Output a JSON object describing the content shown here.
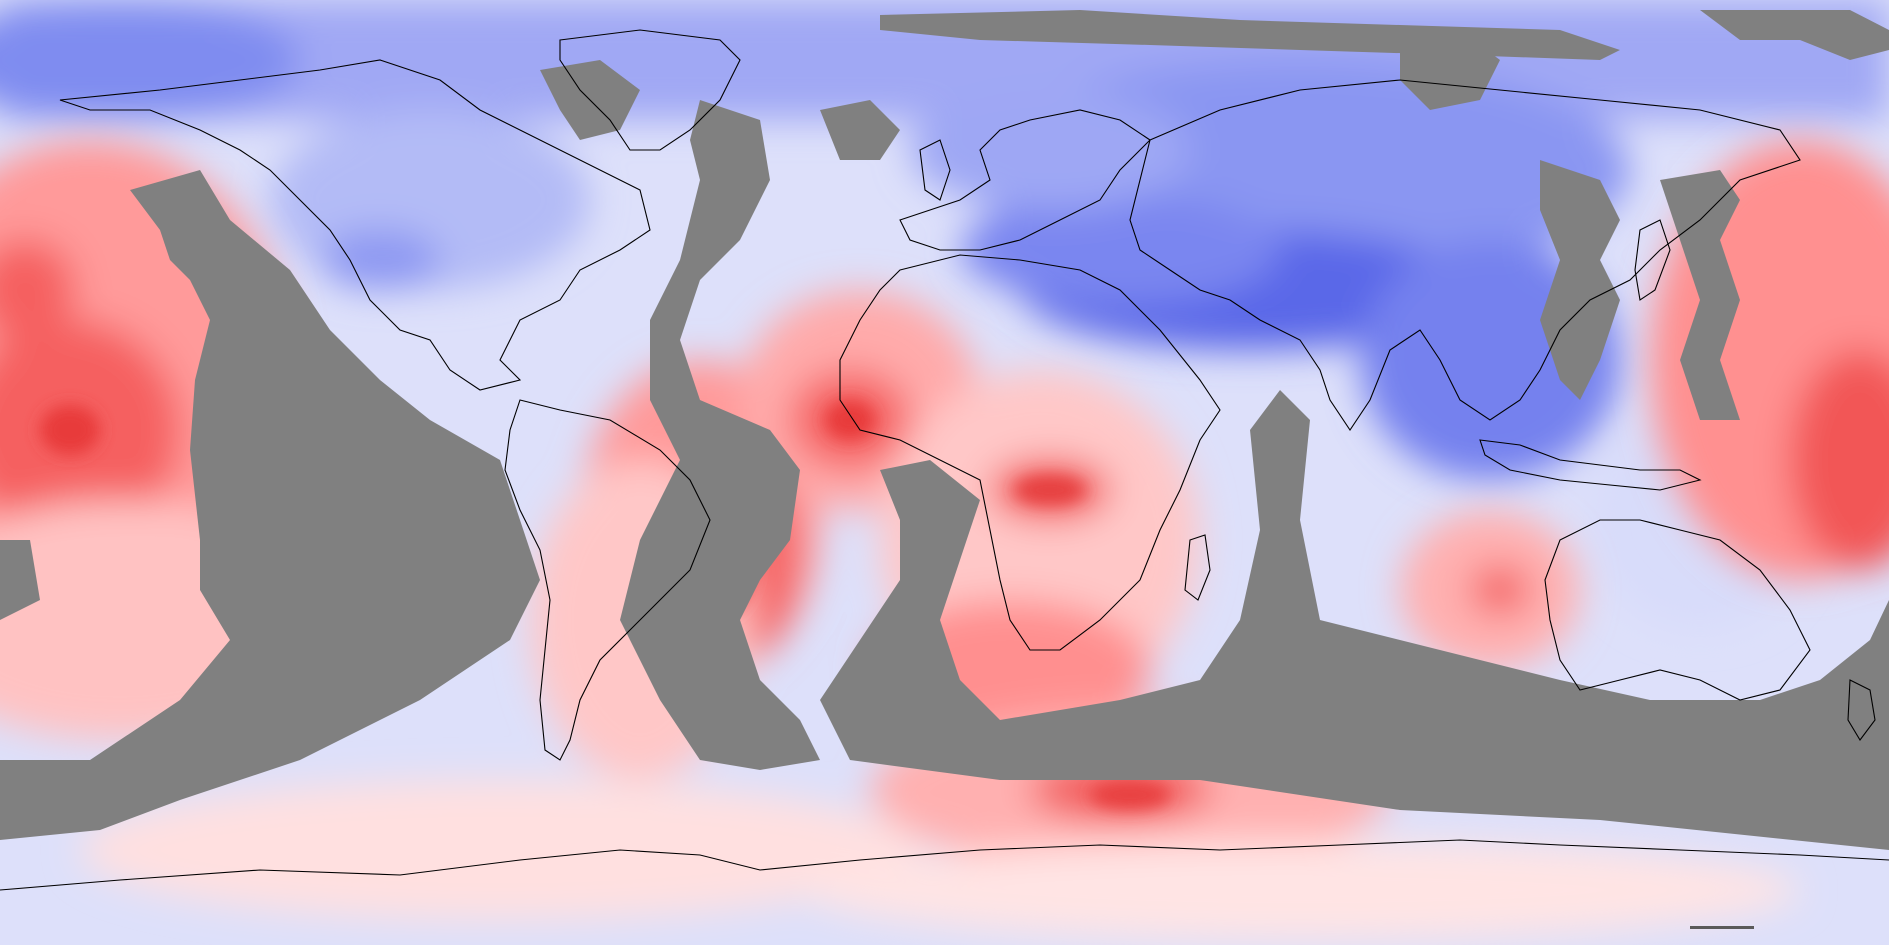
{
  "map": {
    "projection": "equirectangular",
    "extent": {
      "lon": [
        -180,
        180
      ],
      "lat": [
        -90,
        90
      ]
    },
    "layer": "anomaly-field",
    "colors": {
      "strong_negative": "#3f4fe0",
      "negative": "#7f8cf0",
      "mild_negative": "#b3bbf6",
      "near_zero": "#eef0fc",
      "mild_positive": "#ffd4d4",
      "positive": "#ff9a9a",
      "strong_positive": "#f04545",
      "no_data": "#808080",
      "coastline": "#000000"
    },
    "scale_bar_present": true
  }
}
